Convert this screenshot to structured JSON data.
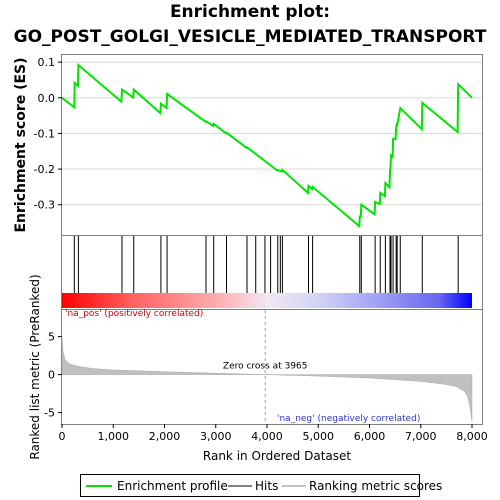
{
  "title_line1": "Enrichment plot:",
  "title_line2": "GO_POST_GOLGI_VESICLE_MEDIATED_TRANSPORT",
  "chart_data": {
    "type": "line",
    "panels": {
      "enrichment": {
        "ylabel": "Enrichment score (ES)",
        "ylim": [
          -0.385,
          0.12
        ],
        "yticks": [
          0.1,
          0.0,
          -0.1,
          -0.2,
          -0.3
        ],
        "ytick_labels": [
          "0.1",
          "0.0",
          "-0.1",
          "-0.2",
          "-0.3"
        ],
        "series_name": "Enrichment profile",
        "color": "#00e400",
        "points": [
          [
            0,
            0.0
          ],
          [
            240,
            -0.027
          ],
          [
            245,
            0.042
          ],
          [
            310,
            0.033
          ],
          [
            320,
            0.092
          ],
          [
            1160,
            -0.011
          ],
          [
            1170,
            0.023
          ],
          [
            1390,
            0.001
          ],
          [
            1400,
            0.023
          ],
          [
            1920,
            -0.043
          ],
          [
            1930,
            -0.017
          ],
          [
            2040,
            -0.029
          ],
          [
            2050,
            0.011
          ],
          [
            2800,
            -0.067
          ],
          [
            2810,
            -0.066
          ],
          [
            2950,
            -0.079
          ],
          [
            2960,
            -0.073
          ],
          [
            3200,
            -0.1
          ],
          [
            3210,
            -0.098
          ],
          [
            3600,
            -0.14
          ],
          [
            3610,
            -0.139
          ],
          [
            4200,
            -0.204
          ],
          [
            4210,
            -0.203
          ],
          [
            4290,
            -0.207
          ],
          [
            4300,
            -0.202
          ],
          [
            4800,
            -0.267
          ],
          [
            4810,
            -0.247
          ],
          [
            4880,
            -0.256
          ],
          [
            4890,
            -0.25
          ],
          [
            5800,
            -0.36
          ],
          [
            5810,
            -0.333
          ],
          [
            5830,
            -0.333
          ],
          [
            5840,
            -0.3
          ],
          [
            6100,
            -0.327
          ],
          [
            6110,
            -0.292
          ],
          [
            6200,
            -0.298
          ],
          [
            6210,
            -0.267
          ],
          [
            6300,
            -0.276
          ],
          [
            6310,
            -0.239
          ],
          [
            6390,
            -0.251
          ],
          [
            6400,
            -0.205
          ],
          [
            6410,
            -0.197
          ],
          [
            6420,
            -0.162
          ],
          [
            6450,
            -0.166
          ],
          [
            6460,
            -0.115
          ],
          [
            6510,
            -0.116
          ],
          [
            6520,
            -0.085
          ],
          [
            6530,
            -0.075
          ],
          [
            6540,
            -0.076
          ],
          [
            6600,
            -0.029
          ],
          [
            7020,
            -0.088
          ],
          [
            7030,
            -0.014
          ],
          [
            7720,
            -0.096
          ],
          [
            7730,
            0.038
          ],
          [
            8000,
            0.0
          ]
        ]
      },
      "hits": {
        "series_name": "Hits",
        "positions": [
          240,
          320,
          1170,
          1400,
          1930,
          2050,
          2810,
          2960,
          3210,
          3610,
          3780,
          3960,
          4070,
          4210,
          4260,
          4300,
          4810,
          4890,
          5810,
          5840,
          6110,
          6210,
          6310,
          6400,
          6420,
          6460,
          6520,
          6540,
          6600,
          7030,
          7730
        ]
      },
      "ranked_metric": {
        "ylabel": "Ranked list metric (PreRanked)",
        "ylim": [
          -6.5,
          8.5
        ],
        "yticks": [
          5,
          0,
          -5
        ],
        "ytick_labels": [
          "5",
          "0",
          "-5"
        ],
        "series_name": "Ranking metric scores",
        "color": "#c0c0c0",
        "curve": [
          [
            0,
            5.0
          ],
          [
            20,
            3.0
          ],
          [
            60,
            2.0
          ],
          [
            150,
            1.4
          ],
          [
            300,
            1.1
          ],
          [
            600,
            0.8
          ],
          [
            1000,
            0.6
          ],
          [
            2000,
            0.38
          ],
          [
            3000,
            0.18
          ],
          [
            3965,
            0.0
          ],
          [
            5000,
            -0.2
          ],
          [
            6000,
            -0.45
          ],
          [
            7000,
            -0.9
          ],
          [
            7500,
            -1.3
          ],
          [
            7700,
            -1.6
          ],
          [
            7850,
            -2.2
          ],
          [
            7920,
            -3.0
          ],
          [
            7960,
            -4.2
          ],
          [
            8000,
            -6.2
          ]
        ],
        "zero_cross_label": "Zero cross at 3965",
        "zero_cross": 3965,
        "pos_label": "'na_pos' (positively correlated)",
        "neg_label": "'na_neg' (negatively correlated)"
      }
    },
    "xlabel": "Rank in Ordered Dataset",
    "xlim": [
      0,
      8000
    ],
    "xticks": [
      0,
      1000,
      2000,
      3000,
      4000,
      5000,
      6000,
      7000,
      8000
    ],
    "xtick_labels": [
      "0",
      "1,000",
      "2,000",
      "3,000",
      "4,000",
      "5,000",
      "6,000",
      "7,000",
      "8,000"
    ],
    "legend": [
      {
        "label": "Enrichment profile",
        "color": "#00e400"
      },
      {
        "label": "Hits",
        "color": "#000000"
      },
      {
        "label": "Ranking metric scores",
        "color": "#c0c0c0"
      }
    ],
    "legend_position": "bottom"
  }
}
